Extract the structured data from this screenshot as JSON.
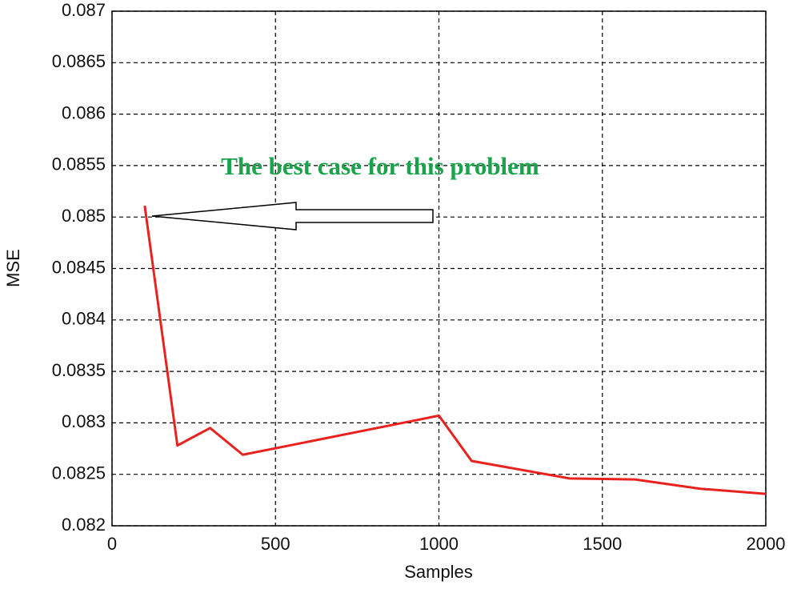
{
  "chart_data": {
    "type": "line",
    "xlabel": "Samples",
    "ylabel": "MSE",
    "annotation": "The best case for this problem",
    "x": [
      100,
      200,
      300,
      400,
      1000,
      1100,
      1400,
      1600,
      1800,
      2000
    ],
    "series": [
      {
        "color": "#e8231f",
        "values": [
          0.08511,
          0.08278,
          0.08295,
          0.08269,
          0.08307,
          0.08263,
          0.08246,
          0.08245,
          0.08236,
          0.08231
        ]
      }
    ],
    "xlim": [
      0,
      2000
    ],
    "xticks": [
      0,
      500,
      1000,
      1500,
      2000
    ],
    "ylim": [
      0.082,
      0.087
    ],
    "yticks": [
      0.082,
      0.0825,
      0.083,
      0.0835,
      0.084,
      0.0845,
      0.085,
      0.0855,
      0.086,
      0.0865,
      0.087
    ],
    "grid": true
  }
}
